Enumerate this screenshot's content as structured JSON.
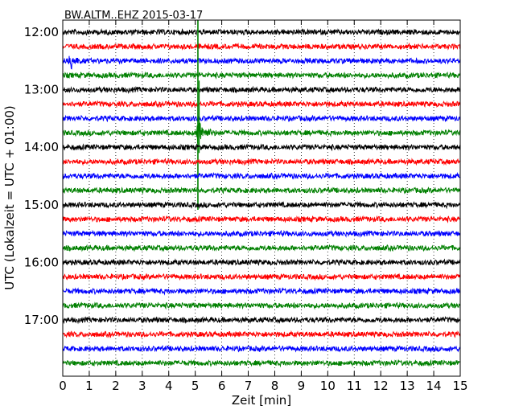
{
  "chart_data": {
    "type": "line",
    "title": "BW.ALTM..EHZ 2015-03-17",
    "xlabel": "Zeit  [min]",
    "ylabel": "UTC (Lokalzeit = UTC + 01:00)",
    "xlim": [
      0,
      15
    ],
    "x_ticks": [
      "0",
      "1",
      "2",
      "3",
      "4",
      "5",
      "6",
      "7",
      "8",
      "9",
      "10",
      "11",
      "12",
      "13",
      "14",
      "15"
    ],
    "y_ticks": [
      "12:00",
      "13:00",
      "14:00",
      "15:00",
      "16:00",
      "17:00"
    ],
    "grid": "vertical dotted lines at each minute",
    "trace_interval_minutes": 15,
    "trace_colors": [
      "#000000",
      "#ff0000",
      "#0000ff",
      "#008000"
    ],
    "series": [
      {
        "start": "12:00",
        "color": "#000000"
      },
      {
        "start": "12:15",
        "color": "#ff0000"
      },
      {
        "start": "12:30",
        "color": "#0000ff",
        "event_minute": 0.35
      },
      {
        "start": "12:45",
        "color": "#008000"
      },
      {
        "start": "13:00",
        "color": "#000000"
      },
      {
        "start": "13:15",
        "color": "#ff0000"
      },
      {
        "start": "13:30",
        "color": "#0000ff"
      },
      {
        "start": "13:45",
        "color": "#008000",
        "event_minute": 5.1
      },
      {
        "start": "14:00",
        "color": "#000000"
      },
      {
        "start": "14:15",
        "color": "#ff0000"
      },
      {
        "start": "14:30",
        "color": "#0000ff"
      },
      {
        "start": "14:45",
        "color": "#008000"
      },
      {
        "start": "15:00",
        "color": "#000000"
      },
      {
        "start": "15:15",
        "color": "#ff0000"
      },
      {
        "start": "15:30",
        "color": "#0000ff"
      },
      {
        "start": "15:45",
        "color": "#008000"
      },
      {
        "start": "16:00",
        "color": "#000000"
      },
      {
        "start": "16:15",
        "color": "#ff0000"
      },
      {
        "start": "16:30",
        "color": "#0000ff"
      },
      {
        "start": "16:45",
        "color": "#008000"
      },
      {
        "start": "17:00",
        "color": "#000000"
      },
      {
        "start": "17:15",
        "color": "#ff0000"
      },
      {
        "start": "17:30",
        "color": "#0000ff"
      },
      {
        "start": "17:45",
        "color": "#008000"
      }
    ]
  }
}
